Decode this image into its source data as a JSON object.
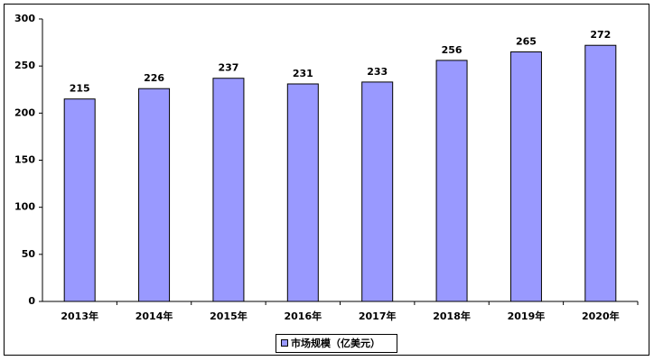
{
  "chart_data": {
    "type": "bar",
    "categories": [
      "2013年",
      "2014年",
      "2015年",
      "2016年",
      "2017年",
      "2018年",
      "2019年",
      "2020年"
    ],
    "series": [
      {
        "name": "市场规模（亿美元）",
        "color": "#9999ff",
        "values": [
          215,
          226,
          237,
          231,
          233,
          256,
          265,
          272
        ]
      }
    ],
    "ylim": [
      0,
      300
    ],
    "yticks": [
      0,
      50,
      100,
      150,
      200,
      250,
      300
    ],
    "grid": false,
    "legend": "bottom"
  }
}
